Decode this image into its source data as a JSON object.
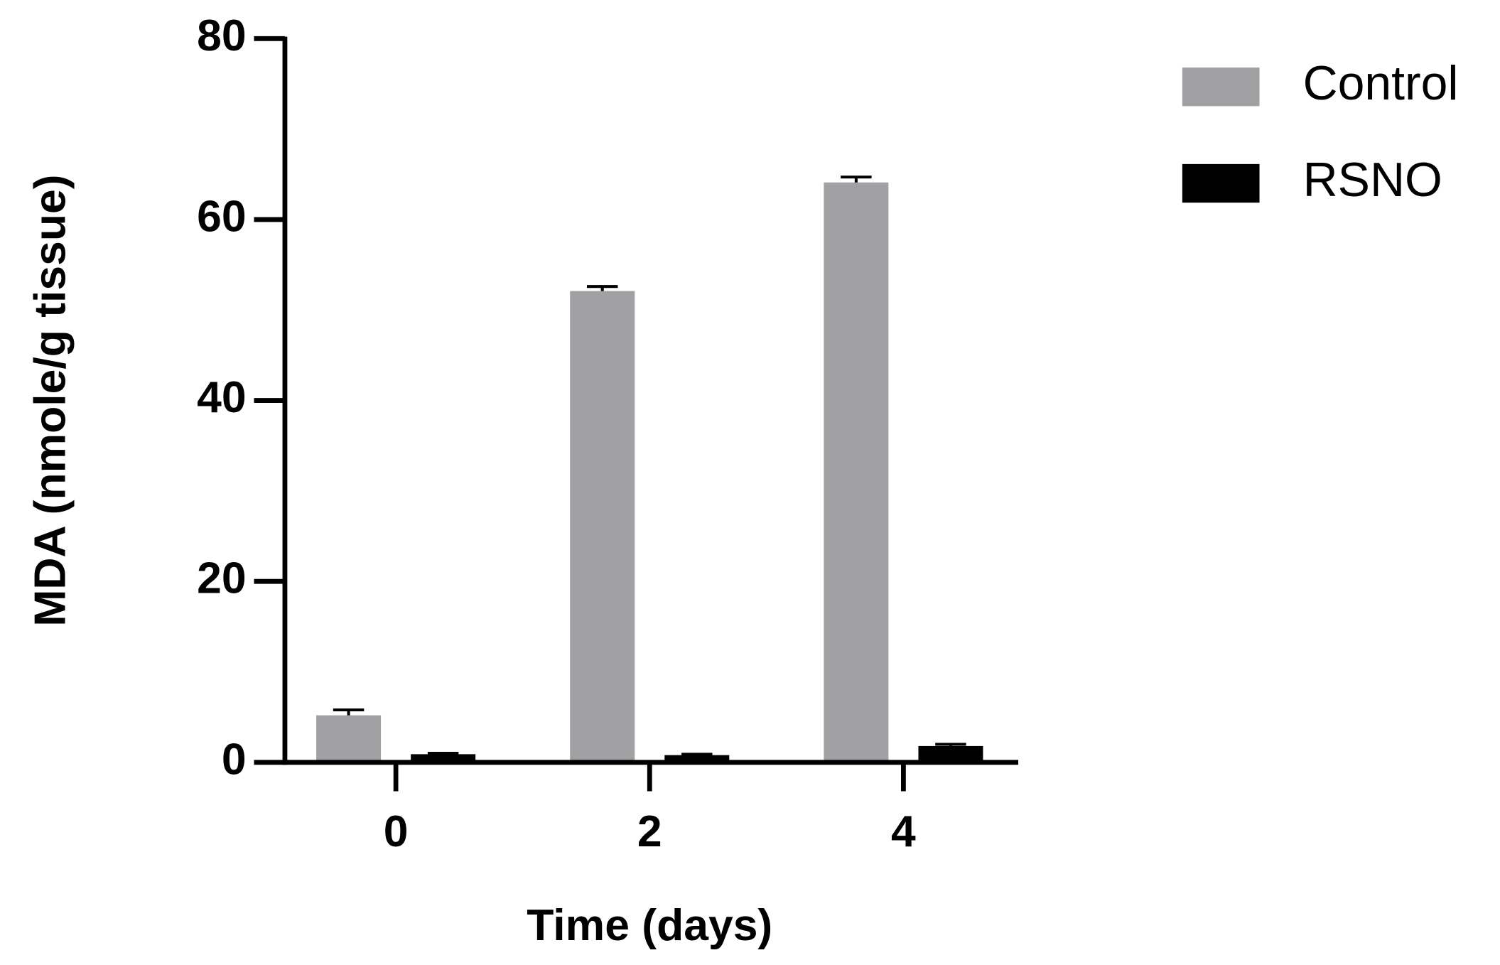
{
  "chart_data": {
    "type": "bar",
    "x_label": "Time (days)",
    "y_label": "MDA (nmole/g tissue)",
    "categories": [
      "0",
      "2",
      "4"
    ],
    "series": [
      {
        "name": "Control",
        "color": "#a1a1a4",
        "values": [
          5.2,
          52.1,
          64.1
        ],
        "errors": [
          0.6,
          0.5,
          0.6
        ]
      },
      {
        "name": "RSNO",
        "color": "#000000",
        "values": [
          0.9,
          0.8,
          1.8
        ],
        "errors": [
          0.1,
          0.1,
          0.2
        ]
      }
    ],
    "ylim": [
      0,
      80
    ],
    "yticks": [
      0,
      20,
      40,
      60,
      80
    ],
    "legend": "right"
  }
}
